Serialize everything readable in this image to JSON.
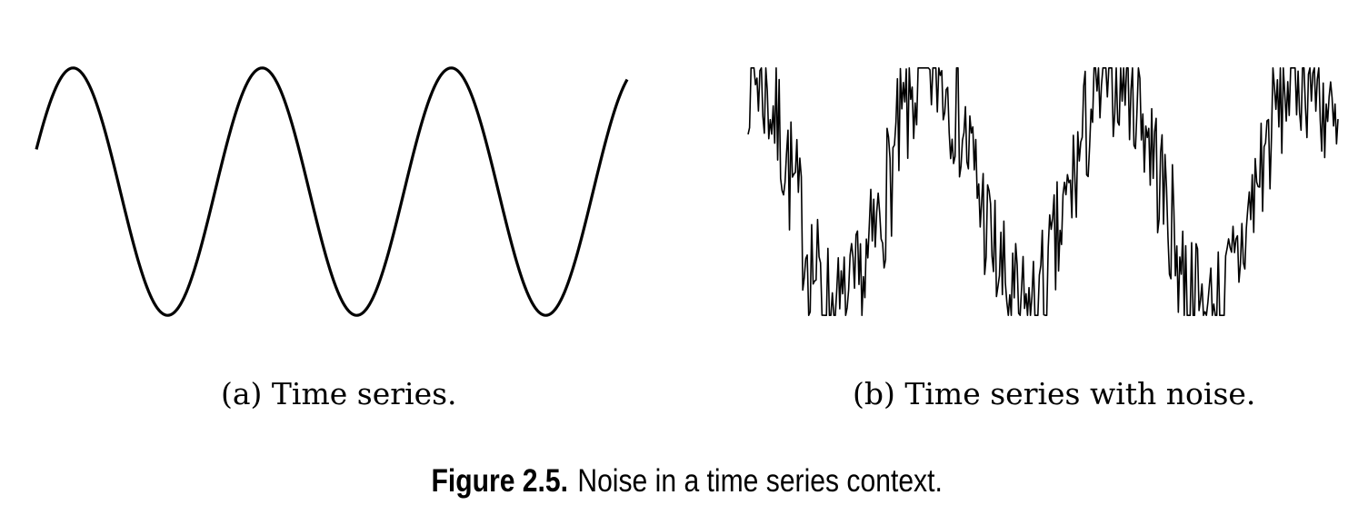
{
  "figure": {
    "label": "Figure 2.5.",
    "caption": "Noise in a time series context."
  },
  "chart_data": [
    {
      "type": "line",
      "subcaption": "(a) Time series.",
      "series": [
        {
          "function": "sine",
          "cycles": 3.125,
          "phase_start_deg": 20,
          "amplitude": 1.0,
          "points": 401
        }
      ],
      "ylim": [
        -1.05,
        1.05
      ],
      "grid": false,
      "axes_visible": false,
      "line_color": "#000000"
    },
    {
      "type": "line",
      "subcaption": "(b) Time series with noise.",
      "series": [
        {
          "function": "sine_plus_noise",
          "cycles": 3.2,
          "phase_start_deg": 90,
          "amplitude": 1.0,
          "noise_amplitude": 0.55,
          "clip": [
            -1.0,
            1.0
          ],
          "points": 400,
          "seed": 7
        }
      ],
      "ylim": [
        -1.05,
        1.05
      ],
      "grid": false,
      "axes_visible": false,
      "line_color": "#000000"
    }
  ]
}
